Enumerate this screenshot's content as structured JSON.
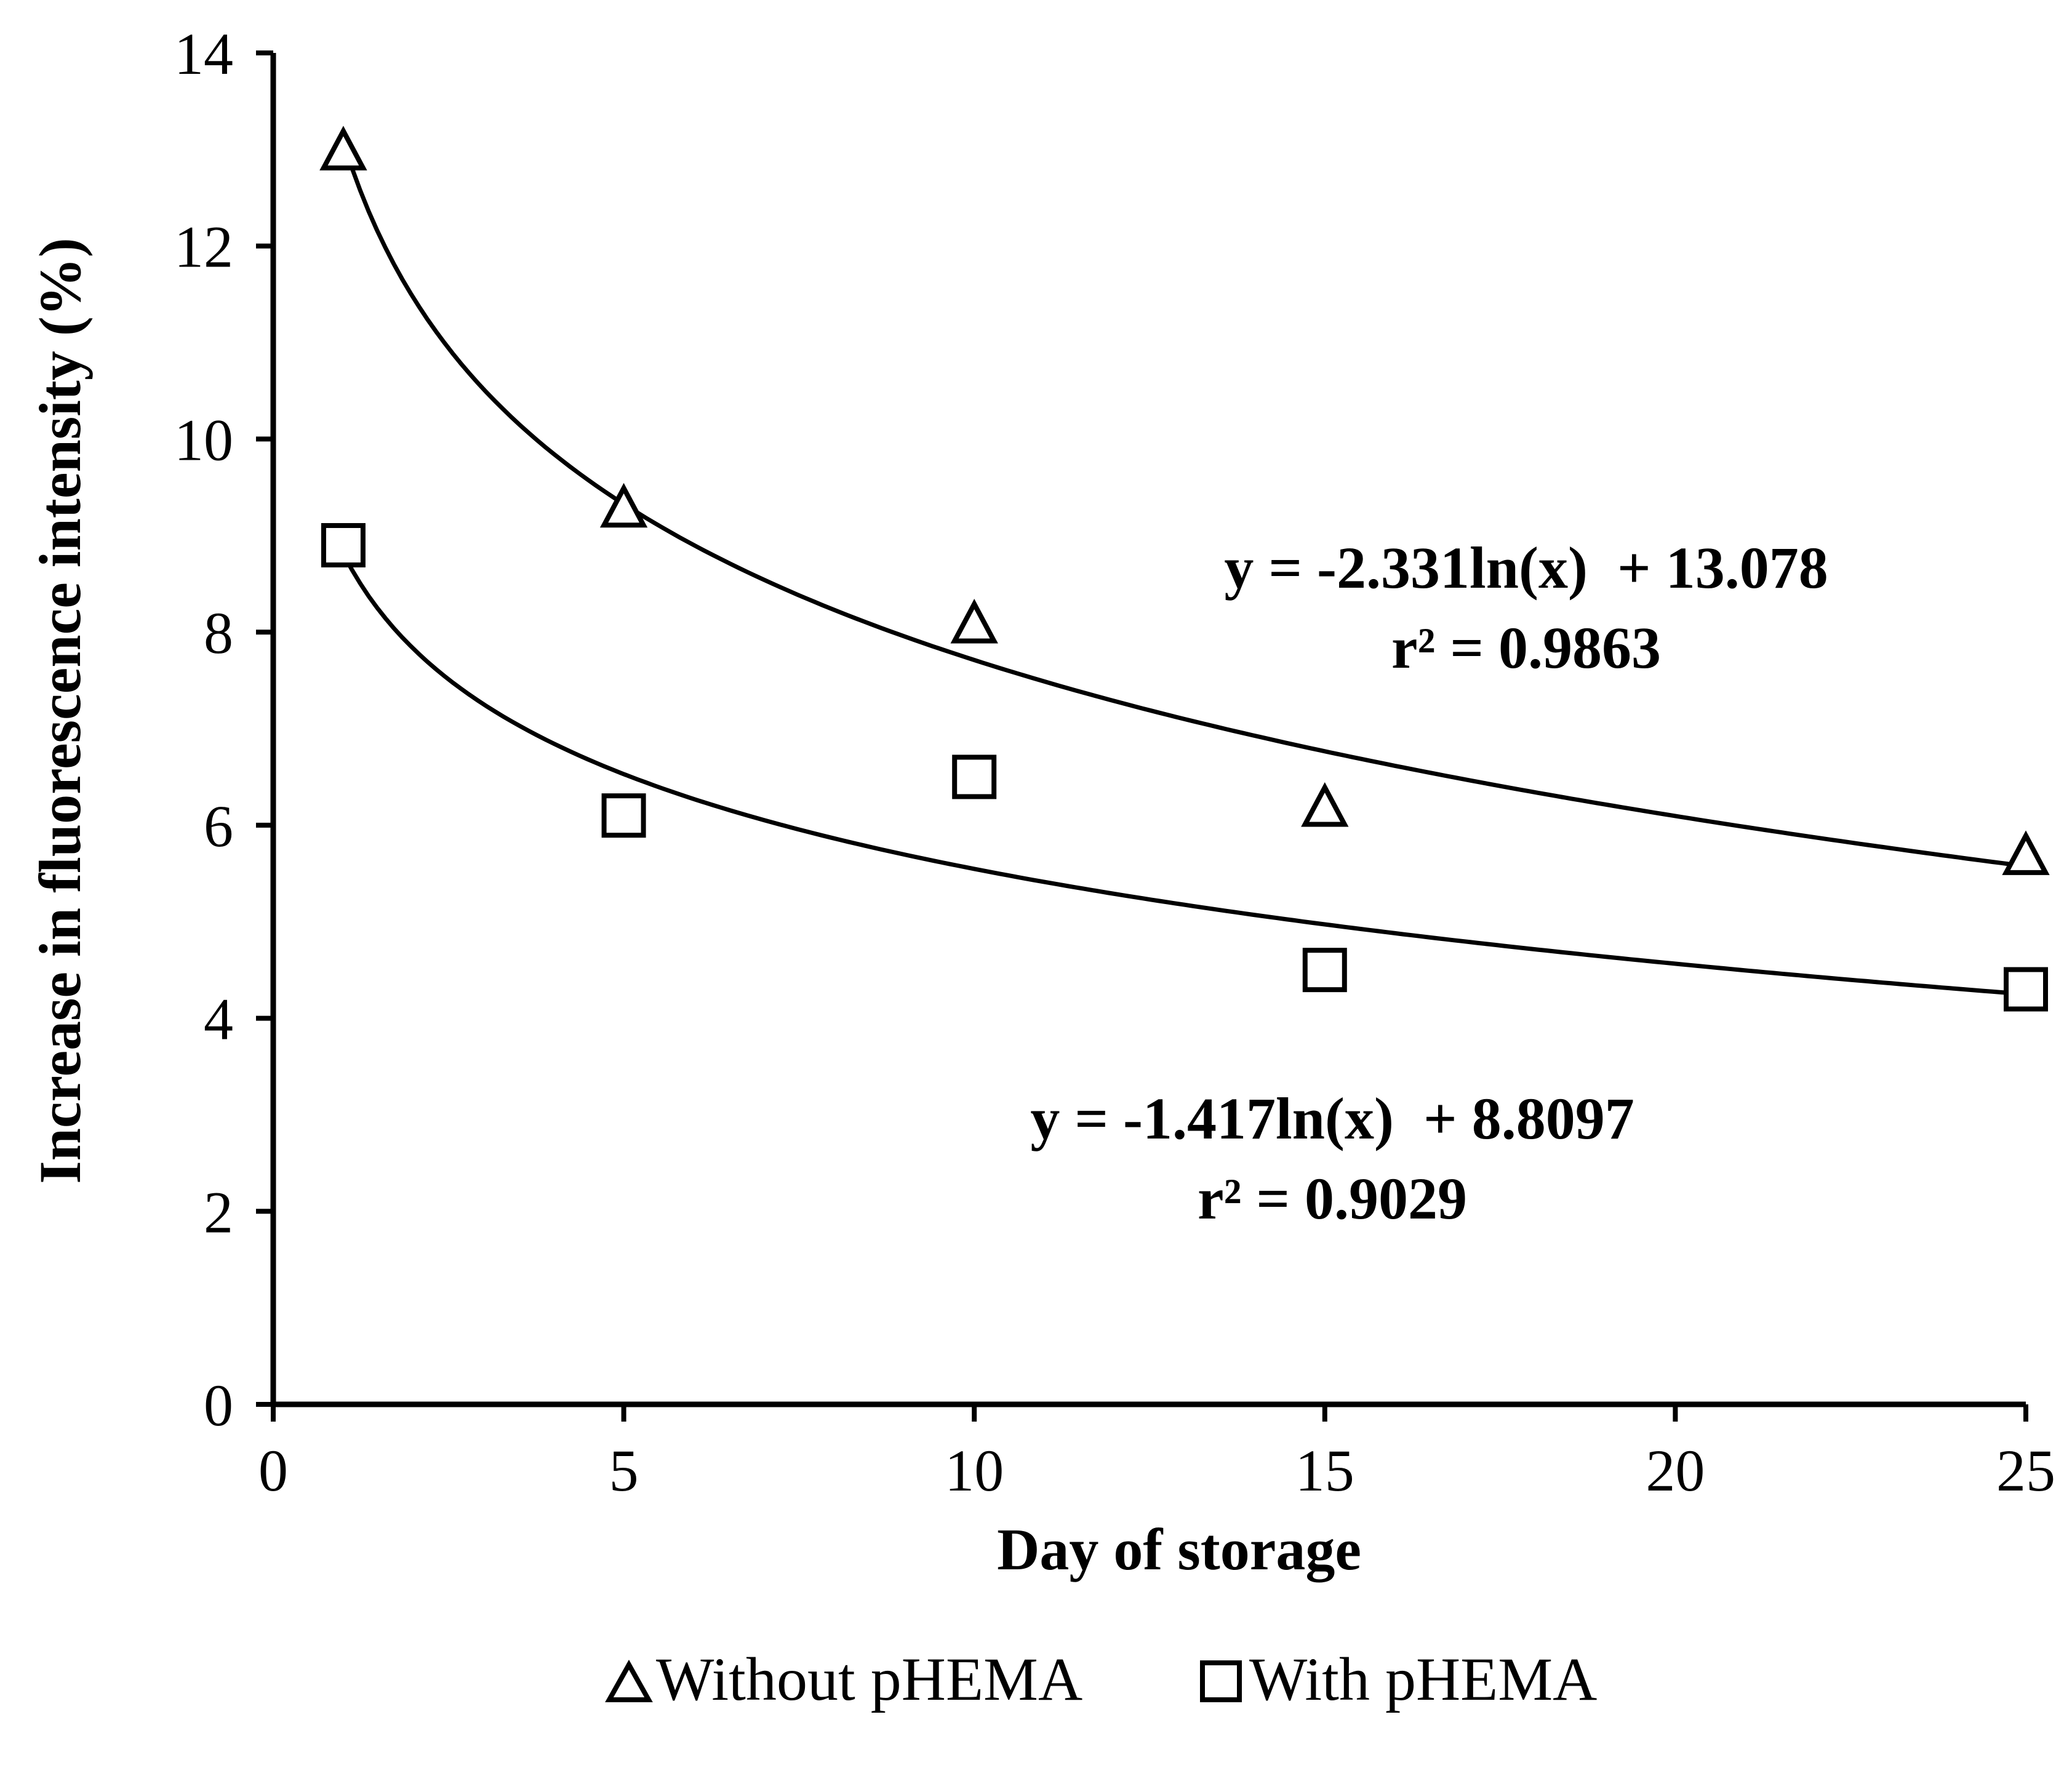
{
  "chart_data": {
    "type": "scatter",
    "xlabel": "Day of storage",
    "ylabel": "Increase in fluorescence intensity (%)",
    "xlim": [
      0,
      25
    ],
    "ylim": [
      0,
      14
    ],
    "x_ticks": [
      "0",
      "5",
      "10",
      "15",
      "20",
      "25"
    ],
    "y_ticks": [
      "0",
      "2",
      "4",
      "6",
      "8",
      "10",
      "12",
      "14"
    ],
    "grid": false,
    "legend_position": "bottom",
    "series": [
      {
        "name": "Without pHEMA",
        "marker": "triangle",
        "x": [
          1,
          5,
          10,
          15,
          25
        ],
        "y": [
          13.0,
          9.3,
          8.1,
          6.2,
          5.7
        ],
        "trendline": {
          "type": "log",
          "a": -2.331,
          "b": 13.078
        },
        "equation": "y = -2.331ln(x)  + 13.078",
        "r2": "r² = 0.9863"
      },
      {
        "name": "With pHEMA",
        "marker": "square",
        "x": [
          1,
          5,
          10,
          15,
          25
        ],
        "y": [
          8.9,
          6.1,
          6.5,
          4.5,
          4.3
        ],
        "trendline": {
          "type": "log",
          "a": -1.417,
          "b": 8.8097
        },
        "equation": "y = -1.417ln(x)  + 8.8097",
        "r2": "r² = 0.9029"
      }
    ]
  }
}
